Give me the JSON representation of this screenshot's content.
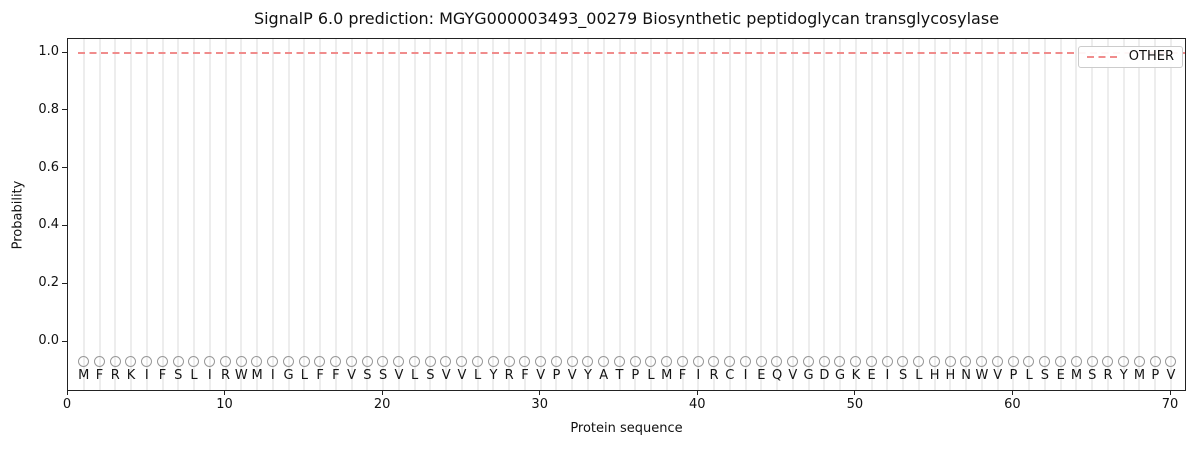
{
  "chart_data": {
    "type": "line",
    "title": "SignalP 6.0 prediction: MGYG000003493_00279 Biosynthetic peptidoglycan transglycosylase",
    "xlabel": "Protein sequence",
    "ylabel": "Probability",
    "x_ticks": [
      0,
      10,
      20,
      30,
      40,
      50,
      60,
      70
    ],
    "y_ticks": [
      0.0,
      0.2,
      0.4,
      0.6,
      0.8,
      1.0
    ],
    "xlim": [
      0,
      71
    ],
    "ylim": [
      -0.17,
      1.05
    ],
    "grid": "vertical gridline at every residue position 1-70",
    "legend": {
      "position": "upper right",
      "entries": [
        {
          "label": "OTHER",
          "style": "dashed",
          "color": "#F08C8C"
        }
      ]
    },
    "series": [
      {
        "name": "OTHER",
        "style": "dashed",
        "color": "#F08C8C",
        "x_range": [
          1,
          70
        ],
        "value": 1.0,
        "description": "constant probability 1.0 across all 70 residues"
      }
    ],
    "sequence": "MFRKIFSLIRWMIGLFFVSSVLSVVLYRFVPVYATPLMFIRCIEQVGDGKEISLHHNWVPLSEMSRYMPV",
    "sequence_marker": "open circle plotted above each residue letter at y ≈ -0.05"
  },
  "colors": {
    "other_line": "#F08C8C",
    "gridline": "#EDEDED",
    "marker_outline": "#999999",
    "spine": "#222222",
    "legend_border": "#CCCCCC",
    "text": "#111111",
    "background": "#FFFFFF"
  }
}
